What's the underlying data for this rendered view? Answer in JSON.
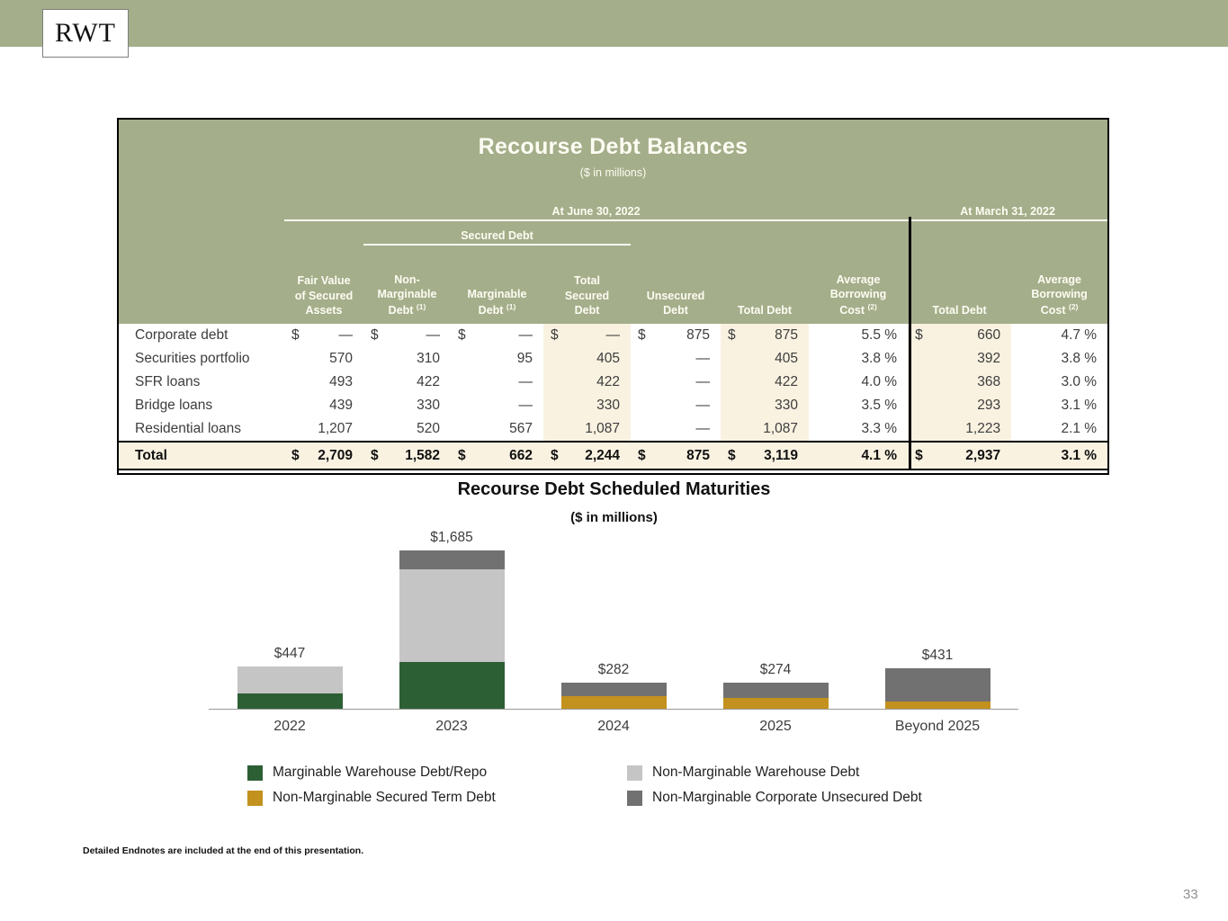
{
  "banner": {
    "logo_text": "RWT"
  },
  "table": {
    "title": "Recourse Debt Balances",
    "subtitle": "($ in millions)",
    "groups": {
      "june": "At June 30, 2022",
      "secured": "Secured Debt",
      "march": "At March 31, 2022"
    },
    "columns": [
      "Fair Value\nof Secured\nAssets",
      "Non-\nMarginable\nDebt (1)",
      "Marginable\nDebt (1)",
      "Total\nSecured\nDebt",
      "Unsecured\nDebt",
      "Total Debt",
      "Average\nBorrowing\nCost (2)",
      "Total Debt",
      "Average\nBorrowing\nCost (2)"
    ],
    "rows": [
      {
        "label": "Corporate debt",
        "cells": [
          {
            "cur": "$",
            "val": "—"
          },
          {
            "cur": "$",
            "val": "—"
          },
          {
            "cur": "$",
            "val": "—"
          },
          {
            "cur": "$",
            "val": "—"
          },
          {
            "cur": "$",
            "val": "875"
          },
          {
            "cur": "$",
            "val": "875"
          },
          {
            "cur": "",
            "val": "5.5 %"
          },
          {
            "cur": "$",
            "val": "660"
          },
          {
            "cur": "",
            "val": "4.7 %"
          }
        ]
      },
      {
        "label": "Securities portfolio",
        "cells": [
          {
            "cur": "",
            "val": "570"
          },
          {
            "cur": "",
            "val": "310"
          },
          {
            "cur": "",
            "val": "95"
          },
          {
            "cur": "",
            "val": "405"
          },
          {
            "cur": "",
            "val": "—"
          },
          {
            "cur": "",
            "val": "405"
          },
          {
            "cur": "",
            "val": "3.8 %"
          },
          {
            "cur": "",
            "val": "392"
          },
          {
            "cur": "",
            "val": "3.8 %"
          }
        ]
      },
      {
        "label": "SFR loans",
        "cells": [
          {
            "cur": "",
            "val": "493"
          },
          {
            "cur": "",
            "val": "422"
          },
          {
            "cur": "",
            "val": "—"
          },
          {
            "cur": "",
            "val": "422"
          },
          {
            "cur": "",
            "val": "—"
          },
          {
            "cur": "",
            "val": "422"
          },
          {
            "cur": "",
            "val": "4.0 %"
          },
          {
            "cur": "",
            "val": "368"
          },
          {
            "cur": "",
            "val": "3.0 %"
          }
        ]
      },
      {
        "label": "Bridge loans",
        "cells": [
          {
            "cur": "",
            "val": "439"
          },
          {
            "cur": "",
            "val": "330"
          },
          {
            "cur": "",
            "val": "—"
          },
          {
            "cur": "",
            "val": "330"
          },
          {
            "cur": "",
            "val": "—"
          },
          {
            "cur": "",
            "val": "330"
          },
          {
            "cur": "",
            "val": "3.5 %"
          },
          {
            "cur": "",
            "val": "293"
          },
          {
            "cur": "",
            "val": "3.1 %"
          }
        ]
      },
      {
        "label": "Residential loans",
        "cells": [
          {
            "cur": "",
            "val": "1,207"
          },
          {
            "cur": "",
            "val": "520"
          },
          {
            "cur": "",
            "val": "567"
          },
          {
            "cur": "",
            "val": "1,087"
          },
          {
            "cur": "",
            "val": "—"
          },
          {
            "cur": "",
            "val": "1,087"
          },
          {
            "cur": "",
            "val": "3.3 %"
          },
          {
            "cur": "",
            "val": "1,223"
          },
          {
            "cur": "",
            "val": "2.1 %"
          }
        ]
      }
    ],
    "total_row": {
      "label": "Total",
      "cells": [
        {
          "cur": "$",
          "val": "2,709"
        },
        {
          "cur": "$",
          "val": "1,582"
        },
        {
          "cur": "$",
          "val": "662"
        },
        {
          "cur": "$",
          "val": "2,244"
        },
        {
          "cur": "$",
          "val": "875"
        },
        {
          "cur": "$",
          "val": "3,119"
        },
        {
          "cur": "",
          "val": "4.1 %"
        },
        {
          "cur": "$",
          "val": "2,937"
        },
        {
          "cur": "",
          "val": "3.1 %"
        }
      ]
    }
  },
  "chart_data": {
    "type": "bar",
    "stacked": true,
    "title": "Recourse Debt Scheduled Maturities",
    "subtitle": "($ in millions)",
    "categories": [
      "2022",
      "2023",
      "2024",
      "2025",
      "Beyond 2025"
    ],
    "series": [
      {
        "name": "Marginable Warehouse Debt/Repo",
        "color": "#2d5f35",
        "values": [
          165,
          500,
          0,
          0,
          0
        ]
      },
      {
        "name": "Non-Marginable Secured Term Debt",
        "color": "#c3911d",
        "values": [
          0,
          0,
          135,
          115,
          75
        ]
      },
      {
        "name": "Non-Marginable Warehouse Debt",
        "color": "#c5c5c5",
        "values": [
          282,
          985,
          0,
          0,
          0
        ]
      },
      {
        "name": "Non-Marginable Corporate Unsecured Debt",
        "color": "#717171",
        "values": [
          0,
          200,
          147,
          159,
          356
        ]
      }
    ],
    "totals": [
      447,
      1685,
      282,
      274,
      431
    ],
    "total_labels": [
      "$447",
      "$1,685",
      "$282",
      "$274",
      "$431"
    ],
    "ylim": [
      0,
      1800
    ],
    "grid": false,
    "legend_position": "bottom"
  },
  "footnote": "Detailed Endnotes are included at the end of this presentation.",
  "page_number": "33",
  "colors": {
    "banner_green": "#a4ae8a",
    "header_text": "#fdfcf3",
    "shade_cream": "#faf2e1",
    "body_text": "#3d3d3d"
  }
}
